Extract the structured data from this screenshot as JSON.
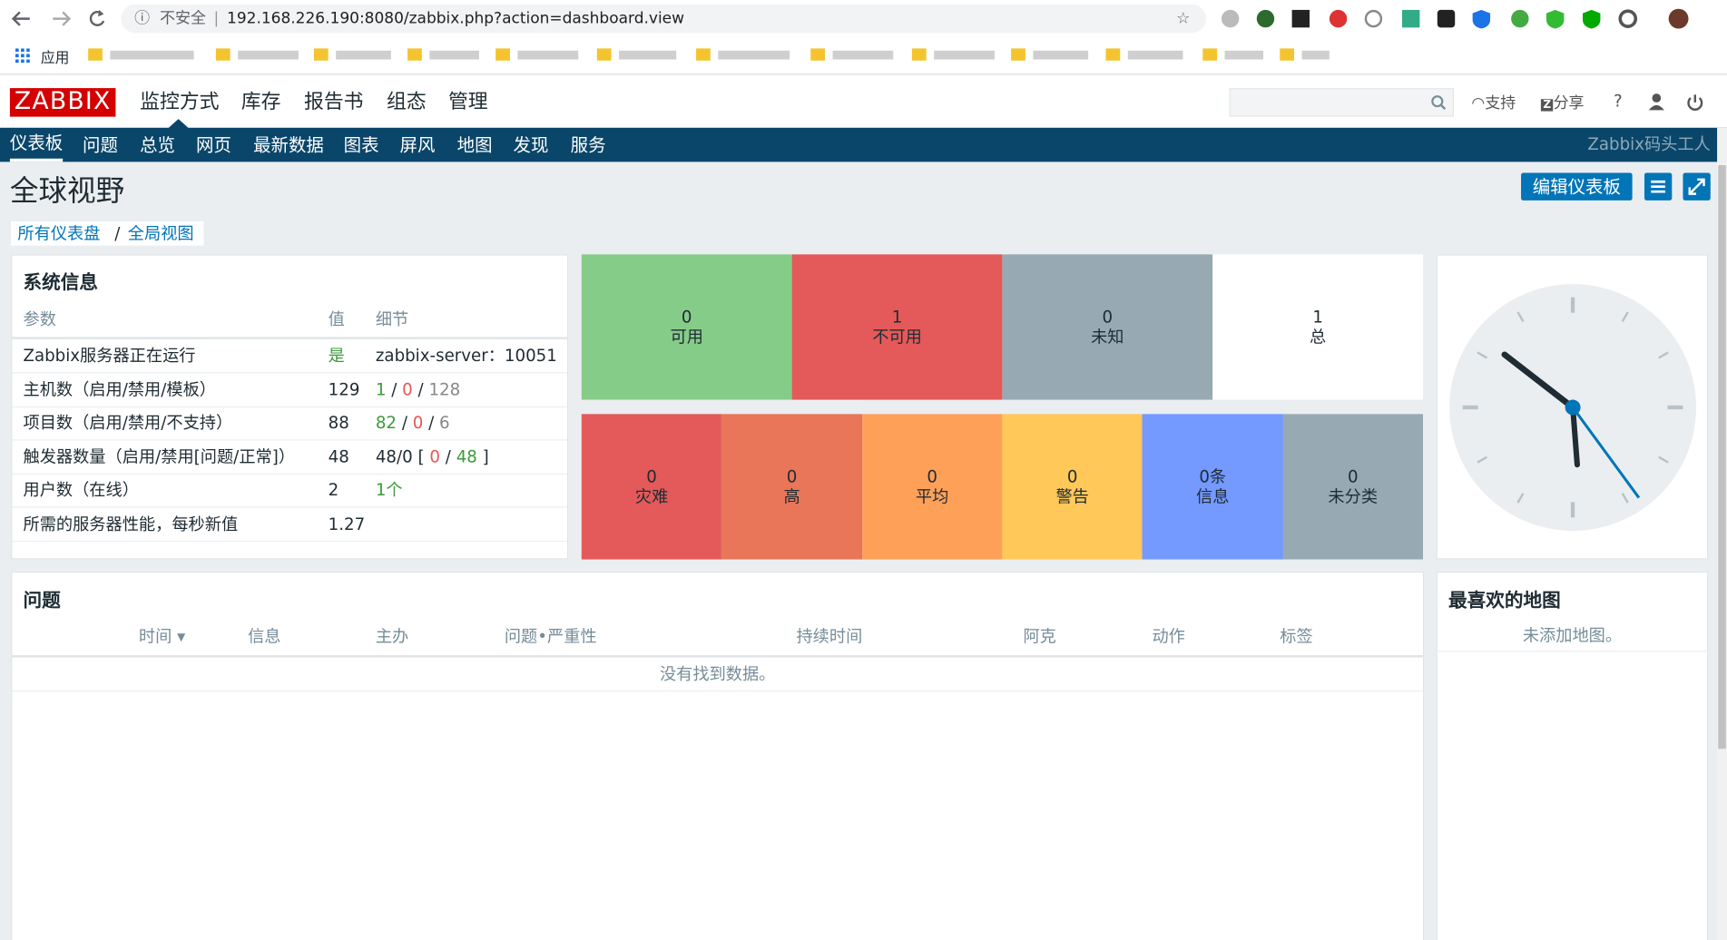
{
  "browser": {
    "insecure": "不安全",
    "url": "192.168.226.190:8080/zabbix.php?action=dashboard.view",
    "bookmarks_apps": "应用"
  },
  "header": {
    "logo": "ZABBIX",
    "menu": [
      "监控方式",
      "库存",
      "报告书",
      "组态",
      "管理"
    ],
    "links": [
      "支持",
      "分享",
      "?"
    ]
  },
  "submenu": {
    "items": [
      "仪表板",
      "问题",
      "总览",
      "网页",
      "最新数据",
      "图表",
      "屏风",
      "地图",
      "发现",
      "服务"
    ],
    "user": "Zabbix码头工人"
  },
  "page": {
    "title": "全球视野",
    "edit_button": "编辑仪表板",
    "breadcrumb": [
      "所有仪表盘",
      "全局视图"
    ]
  },
  "system_info": {
    "title": "系统信息",
    "columns": [
      "参数",
      "值",
      "细节"
    ],
    "rows": [
      {
        "param": "Zabbix服务器正在运行",
        "value": "是",
        "value_color": "#3d9a3d",
        "details": [
          {
            "text": "zabbix-server：10051",
            "color": "#1f2c33"
          }
        ]
      },
      {
        "param": "主机数（启用/禁用/模板）",
        "value": "129",
        "details": [
          {
            "text": "1",
            "color": "#3d9a3d"
          },
          {
            "text": " / ",
            "color": "#1f2c33"
          },
          {
            "text": "0",
            "color": "#e45959"
          },
          {
            "text": " / ",
            "color": "#1f2c33"
          },
          {
            "text": "128",
            "color": "#888888"
          }
        ]
      },
      {
        "param": "项目数（启用/禁用/不支持）",
        "value": "88",
        "details": [
          {
            "text": "82",
            "color": "#3d9a3d"
          },
          {
            "text": " / ",
            "color": "#1f2c33"
          },
          {
            "text": "0",
            "color": "#e45959"
          },
          {
            "text": " / ",
            "color": "#1f2c33"
          },
          {
            "text": "6",
            "color": "#888888"
          }
        ]
      },
      {
        "param": "触发器数量（启用/禁用[问题/正常]）",
        "value": "48",
        "details": [
          {
            "text": "48/0 [ ",
            "color": "#1f2c33"
          },
          {
            "text": "0",
            "color": "#e45959"
          },
          {
            "text": " / ",
            "color": "#1f2c33"
          },
          {
            "text": "48",
            "color": "#3d9a3d"
          },
          {
            "text": " ]",
            "color": "#1f2c33"
          }
        ]
      },
      {
        "param": "用户数（在线）",
        "value": "2",
        "details": [
          {
            "text": "1个",
            "color": "#3d9a3d"
          }
        ]
      },
      {
        "param": "所需的服务器性能，每秒新值",
        "value": "1.27",
        "details": []
      }
    ]
  },
  "host_availability": [
    {
      "count": "0",
      "label": "可用",
      "color": "#86cc89"
    },
    {
      "count": "1",
      "label": "不可用",
      "color": "#e45959"
    },
    {
      "count": "0",
      "label": "未知",
      "color": "#97aab3"
    },
    {
      "count": "1",
      "label": "总",
      "color": "#ffffff"
    }
  ],
  "problems_by_severity": [
    {
      "count": "0",
      "label": "灾难",
      "color": "#e45959"
    },
    {
      "count": "0",
      "label": "高",
      "color": "#e97659"
    },
    {
      "count": "0",
      "label": "平均",
      "color": "#ffa059"
    },
    {
      "count": "0",
      "label": "警告",
      "color": "#ffc859"
    },
    {
      "count": "0条",
      "label": "信息",
      "color": "#7499ff"
    },
    {
      "count": "0",
      "label": "未分类",
      "color": "#97aab3"
    }
  ],
  "problems": {
    "title": "问题",
    "columns": [
      "时间 ▾",
      "信息",
      "主办",
      "问题•严重性",
      "持续时间",
      "阿克",
      "动作",
      "标签"
    ],
    "empty": "没有找到数据。"
  },
  "favorite_maps": {
    "title": "最喜欢的地图",
    "empty": "未添加地图。"
  }
}
